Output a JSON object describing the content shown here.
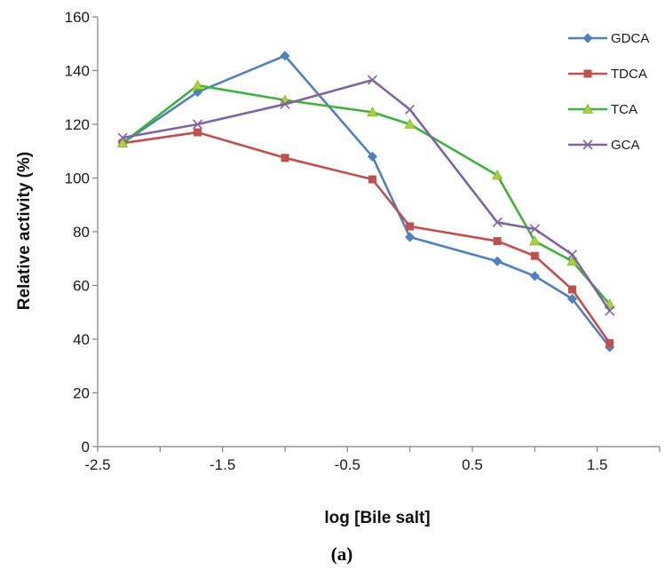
{
  "figure": {
    "caption": "(a)"
  },
  "chart_data": {
    "type": "line",
    "xlabel": "log [Bile salt]",
    "ylabel": "Relative activity (%)",
    "xlim": [
      -2.5,
      2.0
    ],
    "ylim": [
      0,
      160
    ],
    "xticks": [
      -2.5,
      -1.5,
      -0.5,
      0.5,
      1.5
    ],
    "xtick_labels": [
      "-2.5",
      "-1.5",
      "-0.5",
      "0.5",
      "1.5"
    ],
    "yticks": [
      0,
      20,
      40,
      60,
      80,
      100,
      120,
      140,
      160
    ],
    "ytick_labels": [
      "0",
      "20",
      "40",
      "60",
      "80",
      "100",
      "120",
      "140",
      "160"
    ],
    "grid": false,
    "legend_position": "top-right",
    "series": [
      {
        "name": "GDCA",
        "color": "#4F81BD",
        "marker": "diamond",
        "x": [
          -2.3,
          -1.7,
          -1.0,
          -0.3,
          0.0,
          0.7,
          1.0,
          1.3,
          1.6
        ],
        "y": [
          113,
          132,
          145.5,
          108,
          78,
          69,
          63.5,
          55,
          37
        ]
      },
      {
        "name": "TDCA",
        "color": "#C0504D",
        "marker": "square",
        "x": [
          -2.3,
          -1.7,
          -1.0,
          -0.3,
          0.0,
          0.7,
          1.0,
          1.3,
          1.6
        ],
        "y": [
          113,
          117,
          107.5,
          99.5,
          82,
          76.5,
          71,
          58.5,
          38.5
        ]
      },
      {
        "name": "TCA",
        "color": "#3CB33C",
        "marker": "triangle",
        "x": [
          -2.3,
          -1.7,
          -1.0,
          -0.3,
          0.0,
          0.7,
          1.0,
          1.3,
          1.6
        ],
        "y": [
          113,
          134.5,
          129,
          124.5,
          120,
          101,
          76.5,
          69,
          53
        ]
      },
      {
        "name": "GCA",
        "color": "#8064A2",
        "marker": "x",
        "x": [
          -2.3,
          -1.7,
          -1.0,
          -0.3,
          0.0,
          0.7,
          1.0,
          1.3,
          1.6
        ],
        "y": [
          115,
          120,
          127.5,
          136.5,
          125.5,
          83.5,
          81,
          71.5,
          50.5
        ]
      }
    ]
  }
}
